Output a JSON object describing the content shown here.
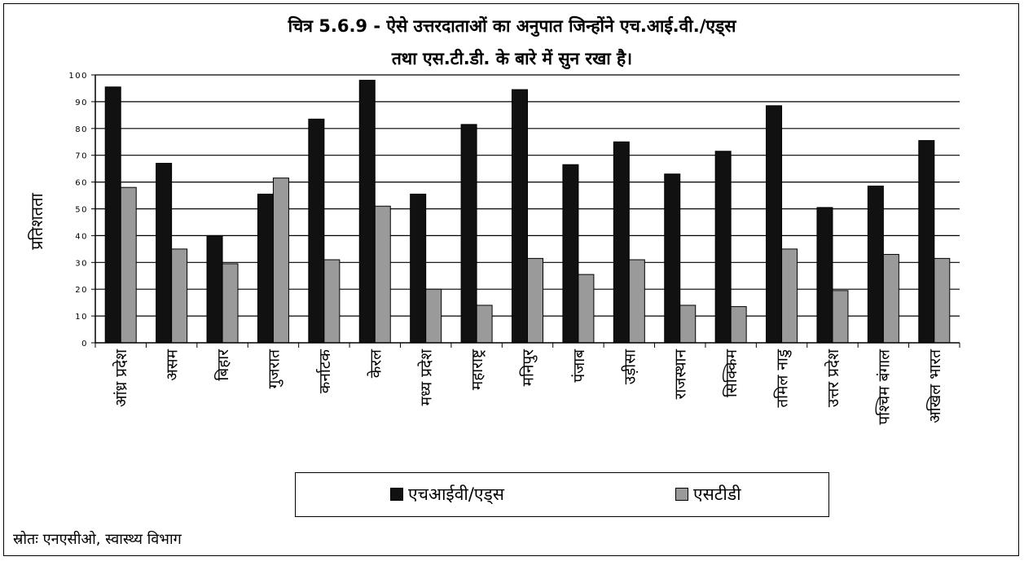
{
  "chart_data": {
    "type": "bar",
    "title": "चित्र 5.6.9 - ऐसे उत्तरदाताओं का अनुपात जिन्होंने एच.आई.वी./एड्स",
    "subtitle": "तथा एस.टी.डी. के बारे में सुन रखा है।",
    "ylabel": "प्रतिशतता",
    "xlabel": "",
    "ylim": [
      0,
      100
    ],
    "yticks": [
      0,
      10,
      20,
      30,
      40,
      50,
      60,
      70,
      80,
      90,
      100
    ],
    "ytick_labels": [
      "0",
      "10",
      "20",
      "30",
      "40",
      "50",
      "60",
      "70",
      "80",
      "90",
      "100"
    ],
    "grid": true,
    "legend_position": "bottom",
    "categories": [
      "आंध्र प्रदेश",
      "असम",
      "बिहार",
      "गुजरात",
      "कर्नाटक",
      "केरल",
      "मध्य प्रदेश",
      "महाराष्ट्र",
      "मनिपुर",
      "पंजाब",
      "उड़ीसा",
      "राजस्थान",
      "सिक्किम",
      "तमिल नाडु",
      "उत्तर प्रदेश",
      "पश्चिम बंगाल",
      "अखिल भारत"
    ],
    "series": [
      {
        "name": "एचआईवी/एड्स",
        "color": "#111111",
        "values": [
          95.5,
          67,
          40,
          55.5,
          83.5,
          98,
          55.5,
          81.5,
          94.5,
          66.5,
          75,
          63,
          71.5,
          88.5,
          50.5,
          58.5,
          75.5
        ]
      },
      {
        "name": "एसटीडी",
        "color": "#9a9a9a",
        "values": [
          58,
          35,
          29.5,
          61.5,
          31,
          51,
          20,
          14,
          31.5,
          25.5,
          31,
          14,
          13.5,
          35,
          19.5,
          33,
          31.5
        ]
      }
    ]
  },
  "source_text": "स्रोतः एनएसीओ, स्वास्थ्य विभाग"
}
